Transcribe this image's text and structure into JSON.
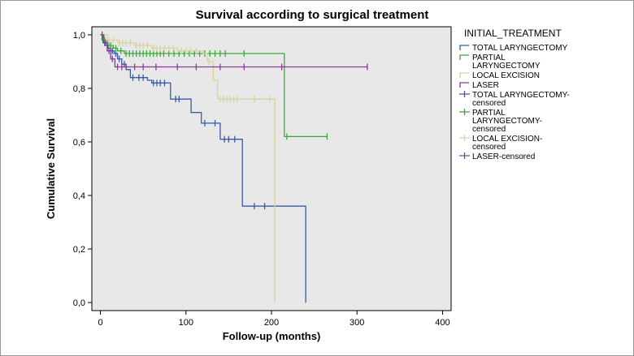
{
  "chart_data": {
    "type": "line",
    "title": "Survival according to surgical treatment",
    "xlabel": "Follow-up (months)",
    "ylabel": "Cumulative Survival",
    "xlim": [
      -10,
      410
    ],
    "ylim": [
      -0.03,
      1.03
    ],
    "x_ticks": [
      0,
      100,
      200,
      300,
      400
    ],
    "x_tick_labels": [
      "0",
      "100",
      "200",
      "300",
      "400"
    ],
    "y_ticks": [
      0,
      0.2,
      0.4,
      0.6,
      0.8,
      1.0
    ],
    "y_tick_labels": [
      "0,0",
      "0,2",
      "0,4",
      "0,6",
      "0,8",
      "1,0"
    ],
    "grid": false,
    "legend_position": "right",
    "legend_title": "INITIAL_TREATMENT",
    "legend_entries": [
      {
        "lines": [
          "TOTAL LARYNGECTOMY"
        ],
        "color": "#3a5aa8",
        "kind": "step"
      },
      {
        "lines": [
          "PARTIAL",
          "LARYNGECTOMY"
        ],
        "color": "#3aaa3a",
        "kind": "step"
      },
      {
        "lines": [
          "LOCAL EXCISION"
        ],
        "color": "#d9d4a0",
        "kind": "step"
      },
      {
        "lines": [
          "LASER"
        ],
        "color": "#8a3a9a",
        "kind": "step"
      },
      {
        "lines": [
          "TOTAL LARYNGECTOMY-",
          "censored"
        ],
        "color": "#3a5aa8",
        "kind": "censor"
      },
      {
        "lines": [
          "PARTIAL",
          "LARYNGECTOMY-",
          "censored"
        ],
        "color": "#3aaa3a",
        "kind": "censor"
      },
      {
        "lines": [
          "LOCAL EXCISION-",
          "censored"
        ],
        "color": "#d9d4a0",
        "kind": "censor"
      },
      {
        "lines": [
          "LASER-censored"
        ],
        "color": "#8a3a9a",
        "kind": "censor"
      }
    ],
    "series": [
      {
        "name": "TOTAL LARYNGECTOMY",
        "color": "#3a5aa8",
        "steps": [
          [
            0,
            1.0
          ],
          [
            2,
            0.98
          ],
          [
            5,
            0.96
          ],
          [
            9,
            0.95
          ],
          [
            12,
            0.94
          ],
          [
            16,
            0.93
          ],
          [
            20,
            0.91
          ],
          [
            25,
            0.89
          ],
          [
            30,
            0.87
          ],
          [
            35,
            0.84
          ],
          [
            55,
            0.83
          ],
          [
            60,
            0.82
          ],
          [
            82,
            0.76
          ],
          [
            106,
            0.71
          ],
          [
            118,
            0.67
          ],
          [
            130,
            0.67
          ],
          [
            140,
            0.61
          ],
          [
            166,
            0.36
          ],
          [
            240,
            0.36
          ],
          [
            240,
            0.0
          ]
        ],
        "censored": [
          [
            3,
            0.98
          ],
          [
            8,
            0.95
          ],
          [
            14,
            0.94
          ],
          [
            18,
            0.93
          ],
          [
            22,
            0.91
          ],
          [
            28,
            0.89
          ],
          [
            38,
            0.84
          ],
          [
            45,
            0.84
          ],
          [
            50,
            0.84
          ],
          [
            62,
            0.82
          ],
          [
            66,
            0.82
          ],
          [
            70,
            0.82
          ],
          [
            75,
            0.82
          ],
          [
            88,
            0.76
          ],
          [
            92,
            0.76
          ],
          [
            122,
            0.67
          ],
          [
            134,
            0.67
          ],
          [
            145,
            0.61
          ],
          [
            150,
            0.61
          ],
          [
            157,
            0.61
          ],
          [
            180,
            0.36
          ],
          [
            192,
            0.36
          ]
        ]
      },
      {
        "name": "PARTIAL LARYNGECTOMY",
        "color": "#3aaa3a",
        "steps": [
          [
            0,
            1.0
          ],
          [
            3,
            0.98
          ],
          [
            6,
            0.97
          ],
          [
            10,
            0.96
          ],
          [
            15,
            0.95
          ],
          [
            20,
            0.94
          ],
          [
            28,
            0.93
          ],
          [
            215,
            0.93
          ],
          [
            215,
            0.62
          ],
          [
            265,
            0.62
          ]
        ],
        "censored": [
          [
            5,
            0.98
          ],
          [
            8,
            0.97
          ],
          [
            12,
            0.96
          ],
          [
            18,
            0.95
          ],
          [
            24,
            0.94
          ],
          [
            30,
            0.93
          ],
          [
            34,
            0.93
          ],
          [
            38,
            0.93
          ],
          [
            42,
            0.93
          ],
          [
            46,
            0.93
          ],
          [
            50,
            0.93
          ],
          [
            54,
            0.93
          ],
          [
            58,
            0.93
          ],
          [
            62,
            0.93
          ],
          [
            66,
            0.93
          ],
          [
            70,
            0.93
          ],
          [
            74,
            0.93
          ],
          [
            80,
            0.93
          ],
          [
            86,
            0.93
          ],
          [
            92,
            0.93
          ],
          [
            98,
            0.93
          ],
          [
            104,
            0.93
          ],
          [
            110,
            0.93
          ],
          [
            116,
            0.93
          ],
          [
            122,
            0.93
          ],
          [
            128,
            0.93
          ],
          [
            134,
            0.93
          ],
          [
            140,
            0.93
          ],
          [
            146,
            0.93
          ],
          [
            168,
            0.93
          ],
          [
            218,
            0.62
          ],
          [
            265,
            0.62
          ]
        ]
      },
      {
        "name": "LOCAL EXCISION",
        "color": "#d9d4a0",
        "steps": [
          [
            0,
            1.0
          ],
          [
            8,
            0.98
          ],
          [
            20,
            0.97
          ],
          [
            40,
            0.96
          ],
          [
            60,
            0.95
          ],
          [
            90,
            0.94
          ],
          [
            120,
            0.93
          ],
          [
            125,
            0.9
          ],
          [
            132,
            0.83
          ],
          [
            137,
            0.76
          ],
          [
            204,
            0.76
          ],
          [
            204,
            0.0
          ]
        ],
        "censored": [
          [
            4,
            0.99
          ],
          [
            10,
            0.98
          ],
          [
            15,
            0.98
          ],
          [
            22,
            0.97
          ],
          [
            26,
            0.97
          ],
          [
            30,
            0.97
          ],
          [
            35,
            0.97
          ],
          [
            42,
            0.96
          ],
          [
            46,
            0.96
          ],
          [
            50,
            0.96
          ],
          [
            55,
            0.96
          ],
          [
            62,
            0.95
          ],
          [
            66,
            0.95
          ],
          [
            70,
            0.95
          ],
          [
            75,
            0.95
          ],
          [
            80,
            0.95
          ],
          [
            85,
            0.95
          ],
          [
            95,
            0.94
          ],
          [
            100,
            0.94
          ],
          [
            105,
            0.94
          ],
          [
            112,
            0.94
          ],
          [
            127,
            0.9
          ],
          [
            140,
            0.76
          ],
          [
            144,
            0.76
          ],
          [
            148,
            0.76
          ],
          [
            152,
            0.76
          ],
          [
            156,
            0.76
          ],
          [
            160,
            0.76
          ],
          [
            180,
            0.76
          ],
          [
            198,
            0.76
          ]
        ]
      },
      {
        "name": "LASER",
        "color": "#8a3a9a",
        "steps": [
          [
            0,
            1.0
          ],
          [
            4,
            0.97
          ],
          [
            8,
            0.94
          ],
          [
            12,
            0.91
          ],
          [
            17,
            0.88
          ],
          [
            312,
            0.88
          ]
        ],
        "censored": [
          [
            2,
            1.0
          ],
          [
            6,
            0.97
          ],
          [
            10,
            0.94
          ],
          [
            14,
            0.91
          ],
          [
            20,
            0.88
          ],
          [
            25,
            0.88
          ],
          [
            30,
            0.88
          ],
          [
            40,
            0.88
          ],
          [
            50,
            0.88
          ],
          [
            65,
            0.88
          ],
          [
            90,
            0.88
          ],
          [
            112,
            0.88
          ],
          [
            140,
            0.88
          ],
          [
            168,
            0.88
          ],
          [
            212,
            0.88
          ],
          [
            312,
            0.88
          ]
        ]
      }
    ]
  }
}
